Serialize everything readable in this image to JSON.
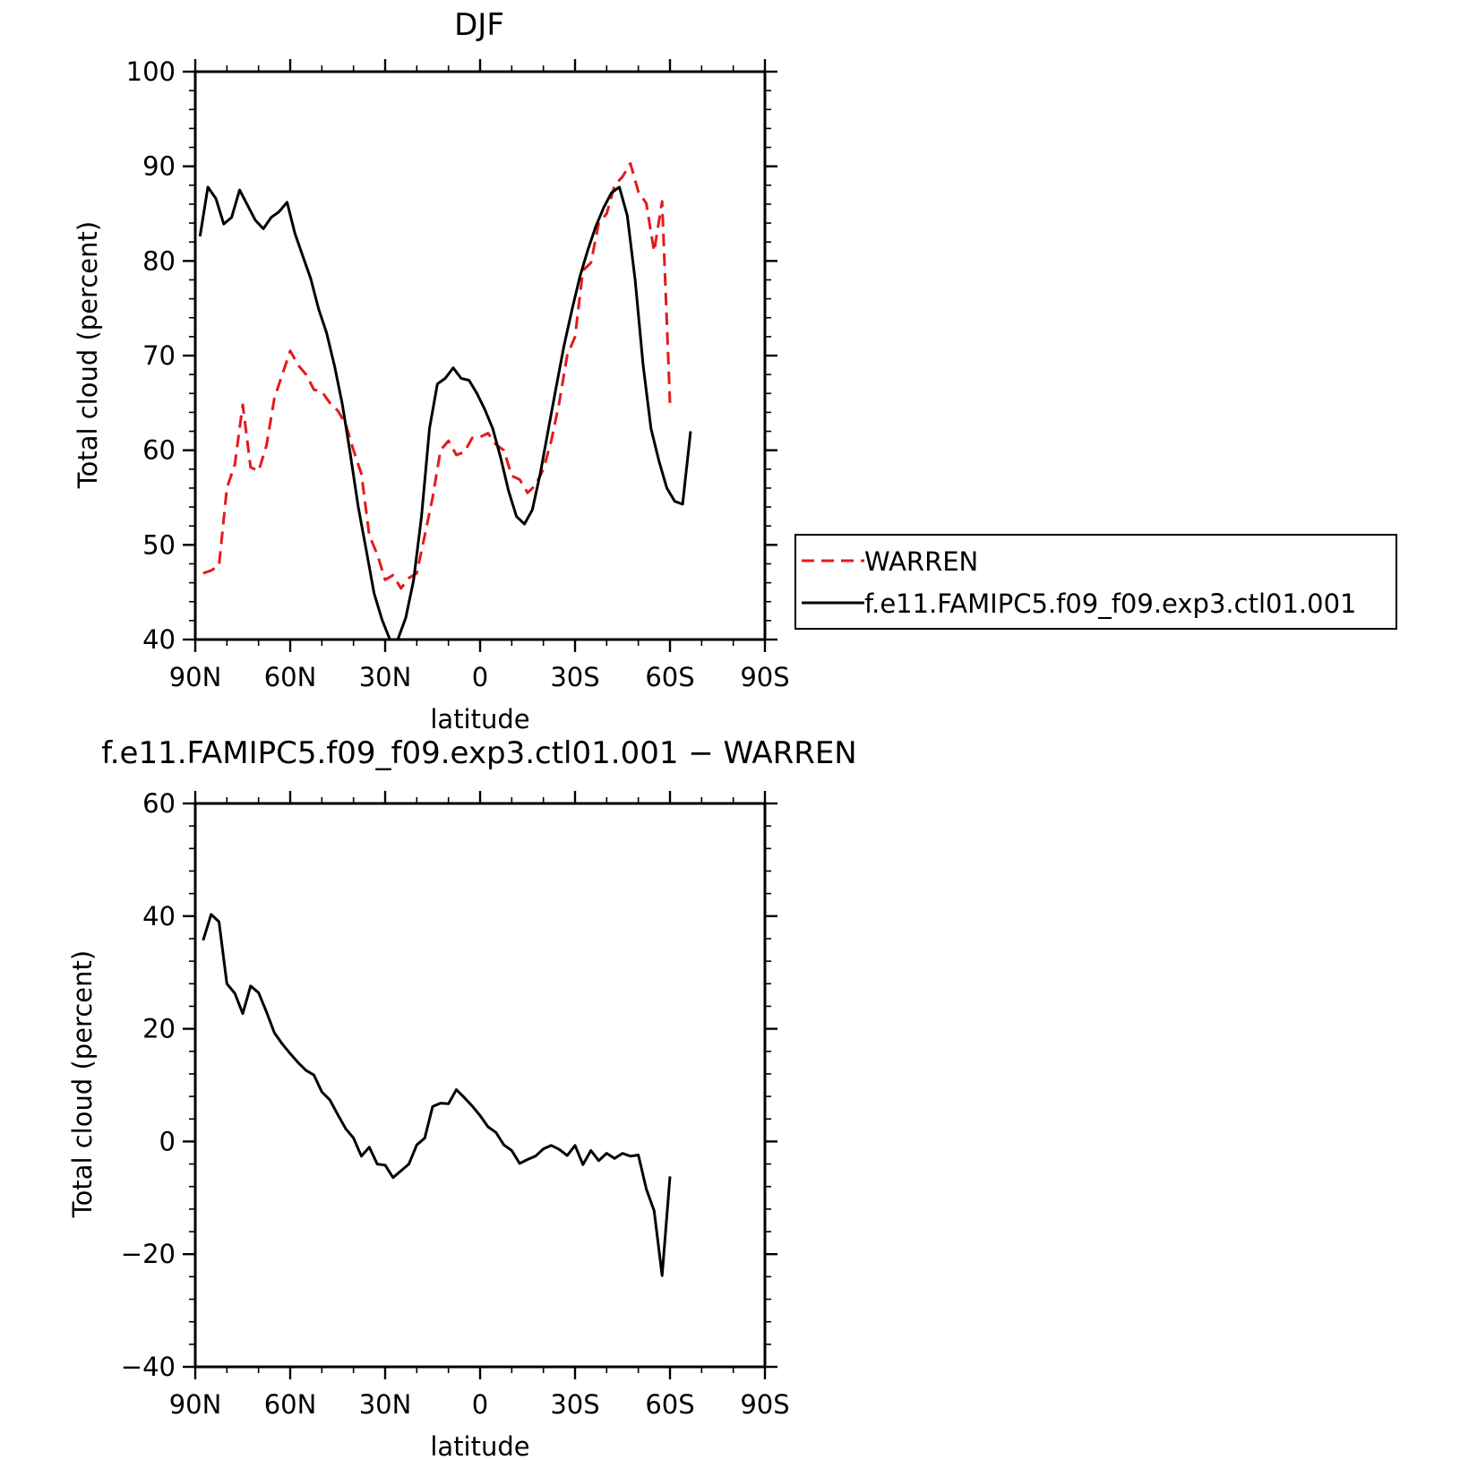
{
  "chart_data": [
    {
      "type": "line",
      "title": "DJF",
      "xlabel": "latitude",
      "ylabel": "Total cloud (percent)",
      "xlim": [
        90,
        -90
      ],
      "ylim": [
        40,
        100
      ],
      "yticks": [
        40,
        50,
        60,
        70,
        80,
        90,
        100
      ],
      "x_ticks": [
        {
          "value": 90,
          "label": "90N"
        },
        {
          "value": 60,
          "label": "60N"
        },
        {
          "value": 30,
          "label": "30N"
        },
        {
          "value": 0,
          "label": "0"
        },
        {
          "value": -30,
          "label": "30S"
        },
        {
          "value": -60,
          "label": "60S"
        },
        {
          "value": -90,
          "label": "90S"
        }
      ],
      "legend": {
        "position": "right"
      },
      "series": [
        {
          "name": "WARREN",
          "color": "#e41a1c",
          "dash": "dashed",
          "points": [
            [
              87.5,
              47.0
            ],
            [
              85,
              47.3
            ],
            [
              82.5,
              47.8
            ],
            [
              80,
              56
            ],
            [
              77.5,
              58.5
            ],
            [
              75,
              64.8
            ],
            [
              72.5,
              58.2
            ],
            [
              70,
              57.8
            ],
            [
              67.5,
              60.5
            ],
            [
              65,
              65.5
            ],
            [
              62.5,
              68
            ],
            [
              60,
              70.5
            ],
            [
              57.5,
              69
            ],
            [
              55,
              68
            ],
            [
              52.5,
              66.4
            ],
            [
              50,
              66.2
            ],
            [
              47.5,
              65
            ],
            [
              45,
              64.2
            ],
            [
              42.5,
              62.8
            ],
            [
              40,
              60
            ],
            [
              37.5,
              57.5
            ],
            [
              35,
              51
            ],
            [
              32.5,
              49
            ],
            [
              30,
              46.3
            ],
            [
              27.5,
              46.8
            ],
            [
              25,
              45.4
            ],
            [
              22.5,
              46.5
            ],
            [
              20,
              47
            ],
            [
              17.5,
              51
            ],
            [
              15,
              55
            ],
            [
              12.5,
              60
            ],
            [
              10,
              61
            ],
            [
              7.5,
              59.5
            ],
            [
              5,
              59.8
            ],
            [
              2.5,
              61.3
            ],
            [
              0,
              61.4
            ],
            [
              -2.5,
              61.8
            ],
            [
              -5,
              60.6
            ],
            [
              -7.5,
              60
            ],
            [
              -10,
              57.3
            ],
            [
              -12.5,
              56.9
            ],
            [
              -15,
              55.5
            ],
            [
              -17.5,
              56.3
            ],
            [
              -20,
              58
            ],
            [
              -22.5,
              61
            ],
            [
              -25,
              65
            ],
            [
              -27.5,
              70
            ],
            [
              -30,
              72
            ],
            [
              -32.5,
              79
            ],
            [
              -35,
              79.8
            ],
            [
              -37.5,
              84
            ],
            [
              -40,
              85
            ],
            [
              -42.5,
              88
            ],
            [
              -45,
              88.9
            ],
            [
              -47.5,
              90.3
            ],
            [
              -50,
              87.3
            ],
            [
              -52.5,
              86.1
            ],
            [
              -55,
              81
            ],
            [
              -57.5,
              86.3
            ],
            [
              -60,
              65
            ]
          ]
        },
        {
          "name": "f.e11.FAMIPC5.f09_f09.exp3.ctl01.001",
          "color": "#000000",
          "dash": "solid",
          "points": [
            [
              88.5,
              82.6
            ],
            [
              86,
              87.8
            ],
            [
              83.5,
              86.6
            ],
            [
              81,
              83.9
            ],
            [
              78.5,
              84.6
            ],
            [
              76,
              87.5
            ],
            [
              73.5,
              85.9
            ],
            [
              71,
              84.3
            ],
            [
              68.5,
              83.4
            ],
            [
              66,
              84.6
            ],
            [
              63.5,
              85.2
            ],
            [
              61,
              86.2
            ],
            [
              58.5,
              82.9
            ],
            [
              56,
              80.5
            ],
            [
              53.5,
              78.1
            ],
            [
              51,
              74.9
            ],
            [
              48.5,
              72.4
            ],
            [
              46,
              68.9
            ],
            [
              43.5,
              64.8
            ],
            [
              41,
              59.6
            ],
            [
              38.5,
              54
            ],
            [
              36,
              49.5
            ],
            [
              33.5,
              44.9
            ],
            [
              31,
              42.1
            ],
            [
              28.5,
              40
            ],
            [
              26,
              40
            ],
            [
              23.5,
              42.3
            ],
            [
              21,
              46.3
            ],
            [
              18.5,
              53
            ],
            [
              16,
              62.3
            ],
            [
              13.5,
              67
            ],
            [
              11,
              67.6
            ],
            [
              8.5,
              68.7
            ],
            [
              6,
              67.6
            ],
            [
              3.5,
              67.4
            ],
            [
              1,
              66
            ],
            [
              -1.5,
              64.3
            ],
            [
              -4,
              62.3
            ],
            [
              -6.5,
              59.2
            ],
            [
              -9,
              55.7
            ],
            [
              -11.5,
              53
            ],
            [
              -14,
              52.2
            ],
            [
              -16.5,
              53.7
            ],
            [
              -19,
              57.5
            ],
            [
              -21.5,
              62.1
            ],
            [
              -24,
              66.6
            ],
            [
              -26.5,
              71
            ],
            [
              -29,
              74.8
            ],
            [
              -31.5,
              78.3
            ],
            [
              -34,
              81.1
            ],
            [
              -36.5,
              83.6
            ],
            [
              -39,
              85.6
            ],
            [
              -41.5,
              87.2
            ],
            [
              -44,
              87.8
            ],
            [
              -46.5,
              84.8
            ],
            [
              -49,
              78
            ],
            [
              -51.5,
              69
            ],
            [
              -54,
              62.3
            ],
            [
              -56.5,
              58.9
            ],
            [
              -59,
              56
            ],
            [
              -61.5,
              54.6
            ],
            [
              -64,
              54.3
            ],
            [
              -66.5,
              62
            ]
          ]
        }
      ]
    },
    {
      "type": "line",
      "title": "f.e11.FAMIPC5.f09_f09.exp3.ctl01.001 − WARREN",
      "xlabel": "latitude",
      "ylabel": "Total cloud (percent)",
      "xlim": [
        90,
        -90
      ],
      "ylim": [
        -40,
        60
      ],
      "yticks": [
        -40,
        -20,
        0,
        20,
        40,
        60
      ],
      "y_tick_labels": [
        "−40",
        "−20",
        "0",
        "20",
        "40",
        "60"
      ],
      "x_ticks": [
        {
          "value": 90,
          "label": "90N"
        },
        {
          "value": 60,
          "label": "60N"
        },
        {
          "value": 30,
          "label": "30N"
        },
        {
          "value": 0,
          "label": "0"
        },
        {
          "value": -30,
          "label": "30S"
        },
        {
          "value": -60,
          "label": "60S"
        },
        {
          "value": -90,
          "label": "90S"
        }
      ],
      "series": [
        {
          "name": "f.e11.FAMIPC5.f09_f09.exp3.ctl01.001 − WARREN",
          "color": "#000000",
          "dash": "solid",
          "points": [
            [
              87.5,
              35.7
            ],
            [
              85,
              40.3
            ],
            [
              82.5,
              39
            ],
            [
              80,
              28
            ],
            [
              77.5,
              26.3
            ],
            [
              75,
              22.7
            ],
            [
              72.5,
              27.6
            ],
            [
              70,
              26.4
            ],
            [
              67.5,
              23
            ],
            [
              65,
              19.3
            ],
            [
              62.5,
              17.3
            ],
            [
              60,
              15.6
            ],
            [
              57.5,
              14
            ],
            [
              55,
              12.6
            ],
            [
              52.5,
              11.8
            ],
            [
              50,
              8.8
            ],
            [
              47.5,
              7.4
            ],
            [
              45,
              4.8
            ],
            [
              42.5,
              2.3
            ],
            [
              40,
              0.6
            ],
            [
              37.5,
              -2.6
            ],
            [
              35,
              -1
            ],
            [
              32.5,
              -4
            ],
            [
              30,
              -4.2
            ],
            [
              27.5,
              -6.4
            ],
            [
              25,
              -5.2
            ],
            [
              22.5,
              -4
            ],
            [
              20,
              -0.6
            ],
            [
              17.5,
              0.6
            ],
            [
              15,
              6.2
            ],
            [
              12.5,
              6.8
            ],
            [
              10,
              6.7
            ],
            [
              7.5,
              9.2
            ],
            [
              5,
              7.8
            ],
            [
              2.5,
              6.3
            ],
            [
              0,
              4.6
            ],
            [
              -2.5,
              2.6
            ],
            [
              -5,
              1.6
            ],
            [
              -7.5,
              -0.6
            ],
            [
              -10,
              -1.6
            ],
            [
              -12.5,
              -3.9
            ],
            [
              -15,
              -3.2
            ],
            [
              -17.5,
              -2.6
            ],
            [
              -20,
              -1.3
            ],
            [
              -22.5,
              -0.7
            ],
            [
              -25,
              -1.4
            ],
            [
              -27.5,
              -2.5
            ],
            [
              -30,
              -0.7
            ],
            [
              -32.5,
              -4.1
            ],
            [
              -35,
              -1.6
            ],
            [
              -37.5,
              -3.4
            ],
            [
              -40,
              -2.1
            ],
            [
              -42.5,
              -3
            ],
            [
              -45,
              -2.1
            ],
            [
              -47.5,
              -2.6
            ],
            [
              -50,
              -2.4
            ],
            [
              -52.5,
              -8.4
            ],
            [
              -55,
              -12.3
            ],
            [
              -57.5,
              -23.8
            ],
            [
              -60,
              -6.2
            ]
          ]
        }
      ]
    }
  ]
}
